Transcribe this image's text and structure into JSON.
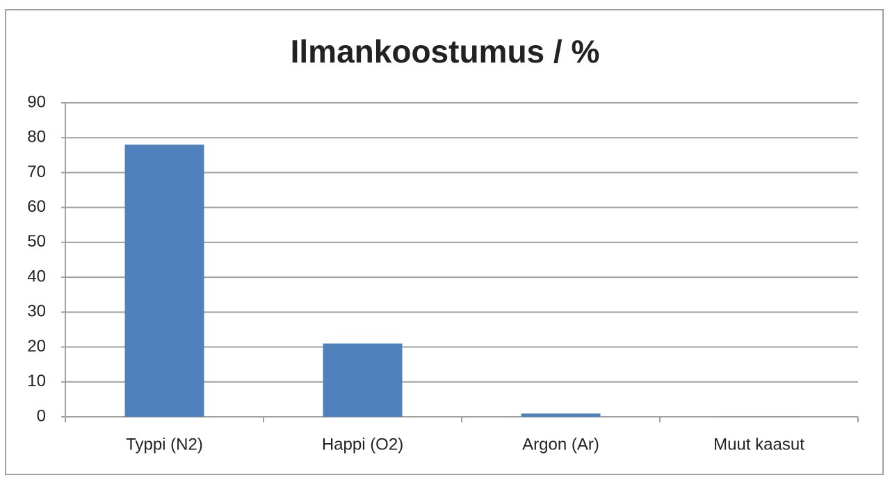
{
  "chart_data": {
    "type": "bar",
    "title": "Ilmankoostumus / %",
    "categories": [
      "Typpi (N2)",
      "Happi (O2)",
      "Argon (Ar)",
      "Muut kaasut"
    ],
    "values": [
      78,
      21,
      0.93,
      0.04
    ],
    "color": "#4f81bd",
    "ylim": [
      0,
      90
    ],
    "yticks": [
      0,
      10,
      20,
      30,
      40,
      50,
      60,
      70,
      80,
      90
    ],
    "grid": true
  }
}
